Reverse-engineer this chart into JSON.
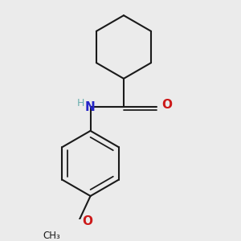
{
  "background_color": "#ebebeb",
  "bond_color": "#1a1a1a",
  "bond_width": 1.5,
  "N_color": "#2424c8",
  "H_color": "#6aafaf",
  "O_color": "#cc1818",
  "figsize": [
    3.0,
    3.0
  ],
  "dpi": 100,
  "xlim": [
    -1.4,
    1.4
  ],
  "ylim": [
    -1.6,
    1.8
  ]
}
